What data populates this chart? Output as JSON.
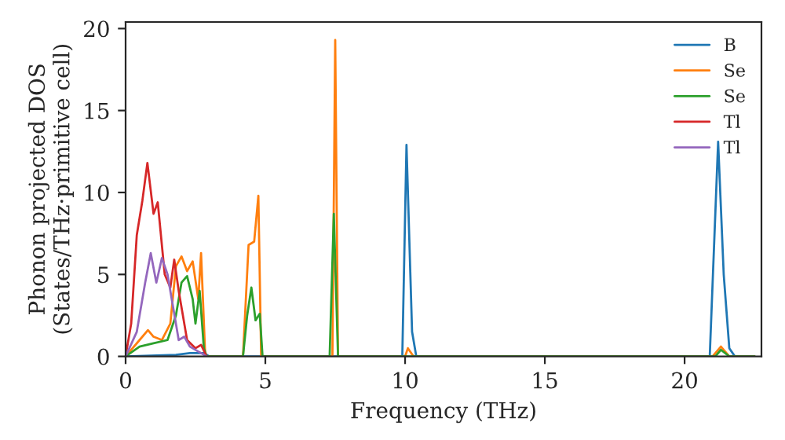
{
  "chart_data": {
    "type": "line",
    "xlabel": "Frequency (THz)",
    "ylabel": "Phonon projected DOS\n(States/THz·primitive cell)",
    "xlim": [
      0,
      22.75
    ],
    "ylim": [
      0,
      20.4
    ],
    "xticks": [
      0,
      5,
      10,
      15,
      20
    ],
    "yticks": [
      0,
      5,
      10,
      15,
      20
    ],
    "grid": false,
    "legend": "top right",
    "marker": "none",
    "line_style": "solid",
    "series": [
      {
        "name": "B",
        "color": "#1f77b4",
        "x": [
          0,
          1.8,
          2.3,
          2.8,
          3.0,
          9.9,
          10.05,
          10.25,
          10.4,
          20.9,
          21.2,
          21.4,
          21.6,
          21.8,
          22.5
        ],
        "values": [
          0,
          0.1,
          0.2,
          0.2,
          0,
          0,
          12.9,
          1.5,
          0,
          0,
          13.1,
          5,
          0.5,
          0,
          0
        ]
      },
      {
        "name": "Se",
        "color": "#ff7f0e",
        "x": [
          0,
          0.5,
          0.8,
          1.0,
          1.3,
          1.6,
          1.8,
          2.0,
          2.2,
          2.4,
          2.6,
          2.7,
          2.85,
          4.2,
          4.4,
          4.6,
          4.75,
          4.85,
          7.4,
          7.5,
          7.6,
          10.0,
          10.1,
          10.3,
          21.0,
          21.3,
          21.6,
          22.5
        ],
        "values": [
          0,
          1,
          1.6,
          1.2,
          1.0,
          2,
          5.5,
          6.1,
          5.2,
          5.8,
          3.5,
          6.3,
          0,
          0,
          6.8,
          7.0,
          9.8,
          0,
          0,
          19.3,
          0,
          0,
          0.5,
          0,
          0,
          0.6,
          0,
          0
        ]
      },
      {
        "name": "Se",
        "color": "#2ca02c",
        "x": [
          0,
          0.5,
          1.0,
          1.5,
          1.8,
          2.0,
          2.2,
          2.4,
          2.5,
          2.65,
          2.8,
          2.9,
          4.2,
          4.35,
          4.5,
          4.65,
          4.8,
          4.9,
          7.3,
          7.45,
          7.6,
          21.1,
          21.3,
          21.6,
          22.5
        ],
        "values": [
          0,
          0.6,
          0.8,
          1.0,
          2.5,
          4.5,
          4.9,
          3.5,
          2,
          4,
          0.5,
          0,
          0,
          2.5,
          4.2,
          2.2,
          2.6,
          0,
          0,
          8.7,
          0,
          0,
          0.4,
          0,
          0
        ]
      },
      {
        "name": "Tl",
        "color": "#d62728",
        "x": [
          0,
          0.2,
          0.4,
          0.6,
          0.78,
          1.0,
          1.15,
          1.4,
          1.6,
          1.74,
          1.9,
          2.2,
          2.5,
          2.7,
          2.9
        ],
        "values": [
          0,
          2,
          7.4,
          9.5,
          11.8,
          8.7,
          9.4,
          5,
          4.2,
          5.9,
          4,
          1,
          0.5,
          0.7,
          0
        ]
      },
      {
        "name": "Tl",
        "color": "#9467bd",
        "x": [
          0,
          0.4,
          0.7,
          0.9,
          1.1,
          1.3,
          1.5,
          1.7,
          1.9,
          2.1,
          2.3,
          2.6,
          2.9
        ],
        "values": [
          0,
          1.5,
          4.5,
          6.3,
          4.5,
          6,
          5,
          3,
          1,
          1.2,
          0.6,
          0.3,
          0
        ]
      }
    ]
  }
}
